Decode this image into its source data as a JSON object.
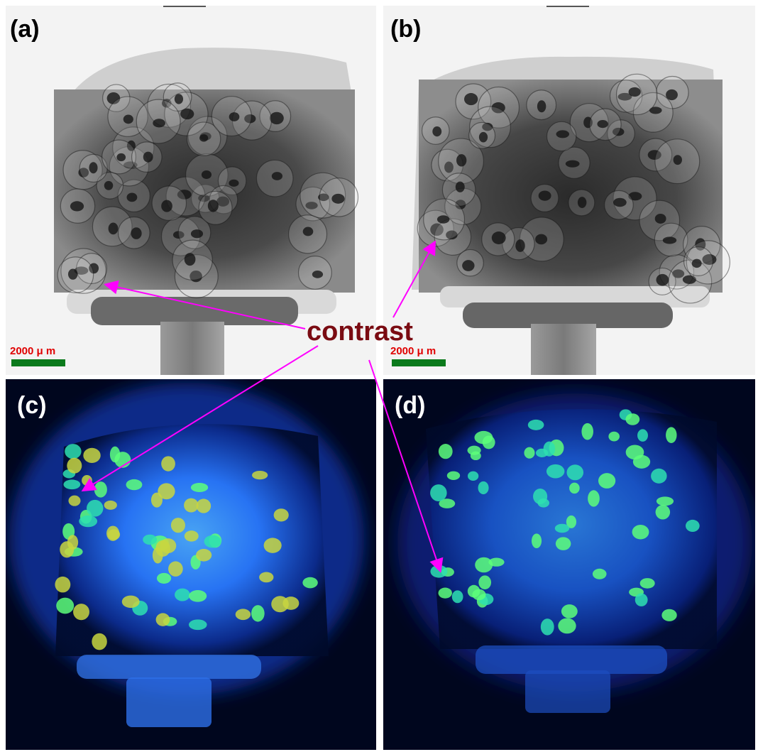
{
  "panels": {
    "a": {
      "label": "(a)"
    },
    "b": {
      "label": "(b)"
    },
    "c": {
      "label": "(c)"
    },
    "d": {
      "label": "(d)"
    }
  },
  "scale_bars": [
    {
      "text": "2000 μ m"
    },
    {
      "text": "2000 μ m"
    }
  ],
  "annotation": {
    "text": "contrast"
  },
  "colors": {
    "scale_text": "#e00000",
    "scale_bar": "#0b7a1c",
    "annotation_text": "#7a0b12",
    "arrows": "#ff00ff",
    "fluorescence_background": "#000a2a",
    "fluorescence_glow": "#2a7bff",
    "highlight": "#7dff6a"
  }
}
